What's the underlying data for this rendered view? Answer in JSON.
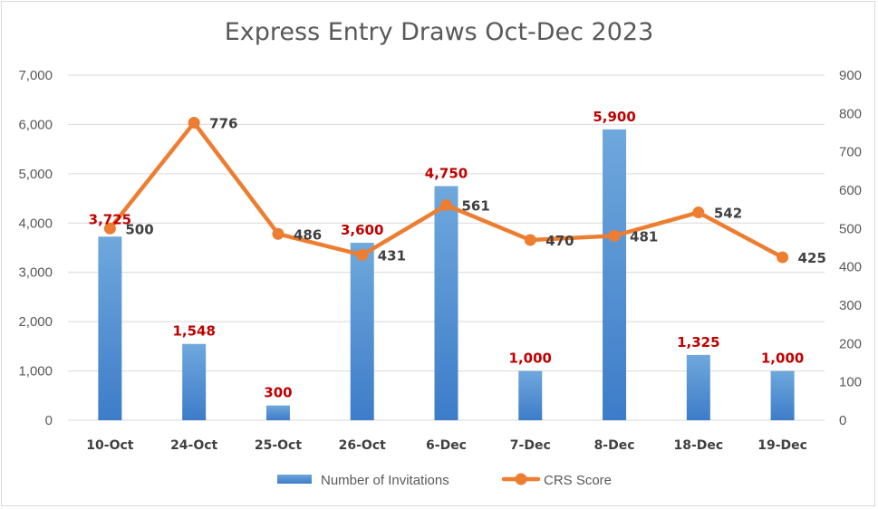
{
  "chart_data": {
    "type": "bar",
    "title": "Express Entry Draws Oct-Dec 2023",
    "categories": [
      "10-Oct",
      "24-Oct",
      "25-Oct",
      "26-Oct",
      "6-Dec",
      "7-Dec",
      "8-Dec",
      "18-Dec",
      "19-Dec"
    ],
    "series": [
      {
        "name": "Number of Invitations",
        "type": "bar",
        "axis": "left",
        "values": [
          3725,
          1548,
          300,
          3600,
          4750,
          1000,
          5900,
          1325,
          1000
        ],
        "labels": [
          "3,725",
          "1,548",
          "300",
          "3,600",
          "4,750",
          "1,000",
          "5,900",
          "1,325",
          "1,000"
        ]
      },
      {
        "name": "CRS Score",
        "type": "line",
        "axis": "right",
        "values": [
          500,
          776,
          486,
          431,
          561,
          470,
          481,
          542,
          425
        ],
        "labels": [
          "500",
          "776",
          "486",
          "431",
          "561",
          "470",
          "481",
          "542",
          "425"
        ]
      }
    ],
    "y_left": {
      "range": [
        0,
        7000
      ],
      "ticks": [
        "0",
        "1,000",
        "2,000",
        "3,000",
        "4,000",
        "5,000",
        "6,000",
        "7,000"
      ]
    },
    "y_right": {
      "range": [
        0,
        900
      ],
      "ticks": [
        "0",
        "100",
        "200",
        "300",
        "400",
        "500",
        "600",
        "700",
        "800",
        "900"
      ]
    },
    "grid": true,
    "legend_position": "bottom",
    "colors": {
      "bar_top": "#6fa8dc",
      "bar_bottom": "#3d7cc9",
      "line": "#ed7d31",
      "bar_label": "#c00000",
      "line_label": "#404040",
      "gridline": "#d9d9d9"
    }
  }
}
